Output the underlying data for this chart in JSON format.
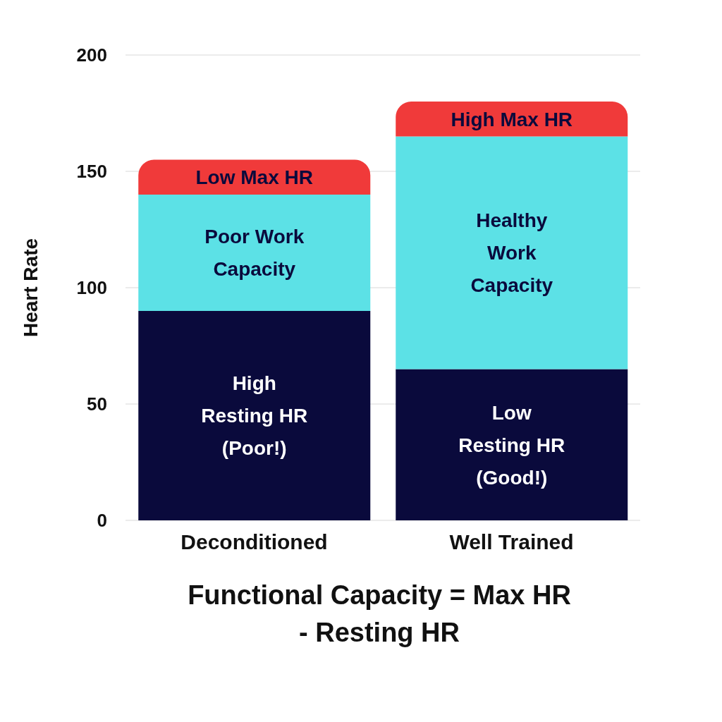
{
  "chart_data": {
    "type": "bar",
    "stacked": true,
    "ylabel": "Heart Rate",
    "categories": [
      "Deconditioned",
      "Well Trained"
    ],
    "series": [
      {
        "color": "#0a0a3c",
        "values": [
          90,
          65
        ],
        "value_labels": [
          "High Resting HR (Poor!)",
          "Low Resting HR (Good!)"
        ]
      },
      {
        "color": "#5ce1e6",
        "values": [
          50,
          100
        ],
        "value_labels": [
          "Poor Work Capacity",
          "Healthy Work Capacity"
        ]
      },
      {
        "color": "#f03a3a",
        "values": [
          15,
          15
        ],
        "value_labels": [
          "Low Max HR",
          "High Max HR"
        ]
      }
    ],
    "ylim": [
      0,
      200
    ],
    "yticks": [
      0,
      50,
      100,
      150,
      200
    ],
    "grid": "y",
    "legend": false,
    "annotations": [
      "Functional Capacity = Max HR - Resting HR"
    ]
  }
}
